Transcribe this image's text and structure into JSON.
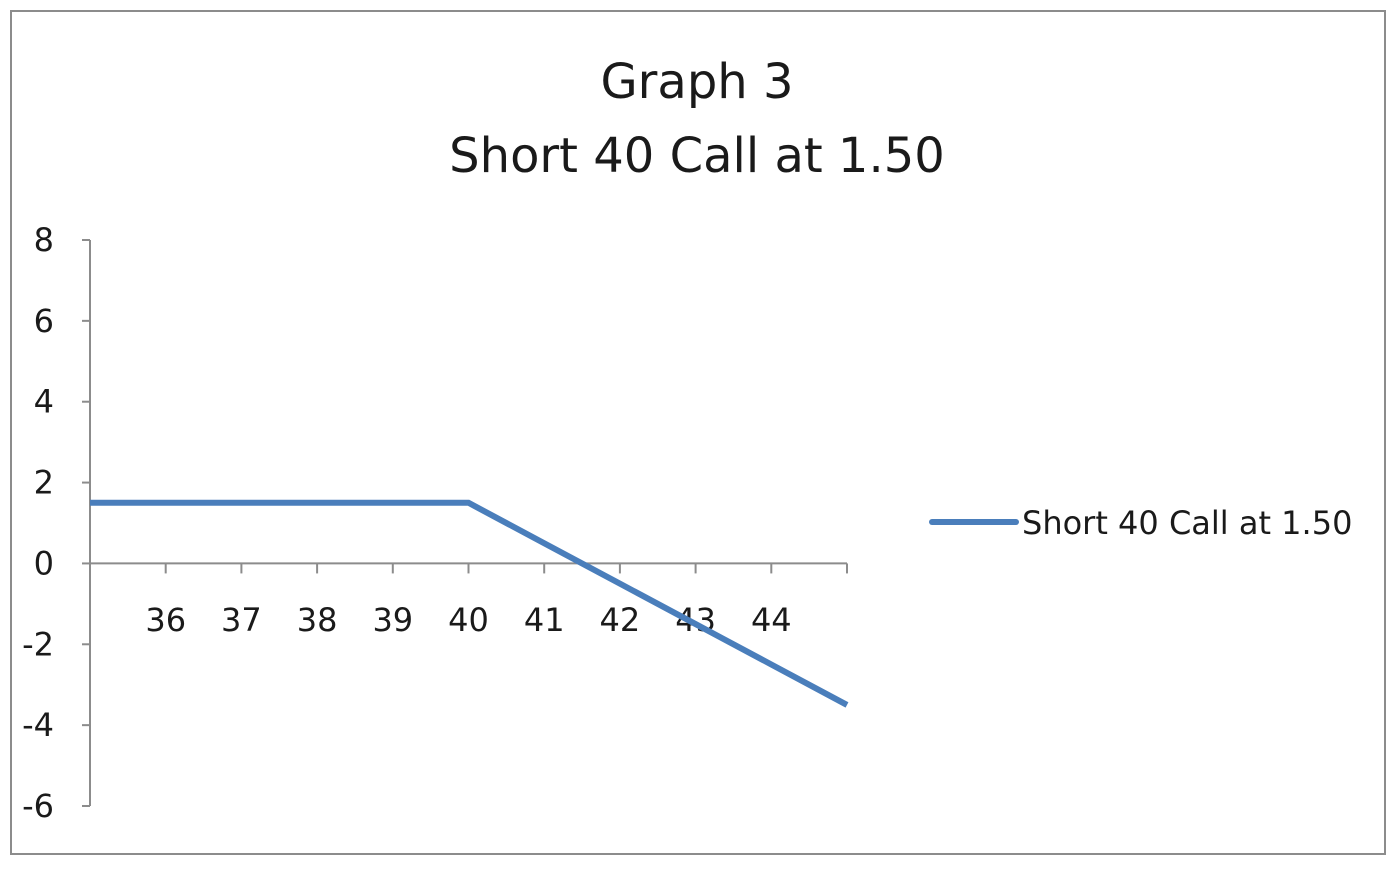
{
  "chart_data": {
    "type": "line",
    "title": "Graph 3",
    "subtitle": "Short 40 Call at 1.50",
    "xlabel": "",
    "ylabel": "",
    "x": [
      35,
      36,
      37,
      38,
      39,
      40,
      41,
      42,
      43,
      44,
      45
    ],
    "x_tick_labels": [
      "36",
      "37",
      "38",
      "39",
      "40",
      "41",
      "42",
      "43",
      "44"
    ],
    "y_ticks": [
      -6,
      -4,
      -2,
      0,
      2,
      4,
      6,
      8
    ],
    "ylim": [
      -6,
      8
    ],
    "series": [
      {
        "name": "Short 40 Call at 1.50",
        "values": [
          1.5,
          1.5,
          1.5,
          1.5,
          1.5,
          1.5,
          0.5,
          -0.5,
          -1.5,
          -2.5,
          -3.5
        ],
        "color": "#4a7ebb"
      }
    ],
    "grid": false,
    "legend_position": "right"
  }
}
